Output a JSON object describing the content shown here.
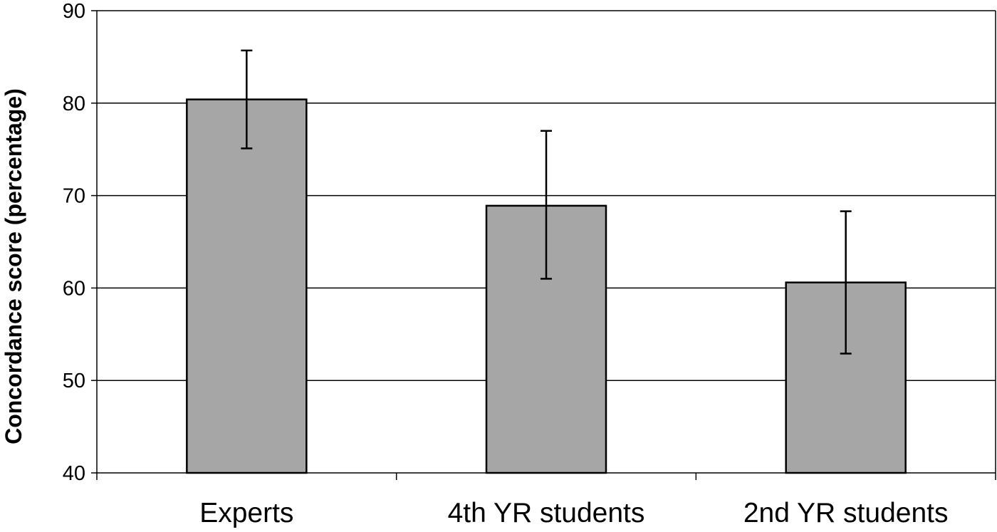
{
  "chart_data": {
    "type": "bar",
    "categories": [
      "Experts",
      "4th YR students",
      "2nd YR students"
    ],
    "values": [
      80.4,
      68.9,
      60.6
    ],
    "error_low": [
      75.1,
      61.0,
      52.9
    ],
    "error_high": [
      85.7,
      77.0,
      68.3
    ],
    "ylabel": "Concordance score (percentage)",
    "xlabel": "",
    "ylim": [
      40,
      90
    ],
    "yticks": [
      "40",
      "50",
      "60",
      "70",
      "80",
      "90"
    ],
    "grid": true,
    "bar_color": "#a6a6a6",
    "axis_color": "#000000"
  }
}
